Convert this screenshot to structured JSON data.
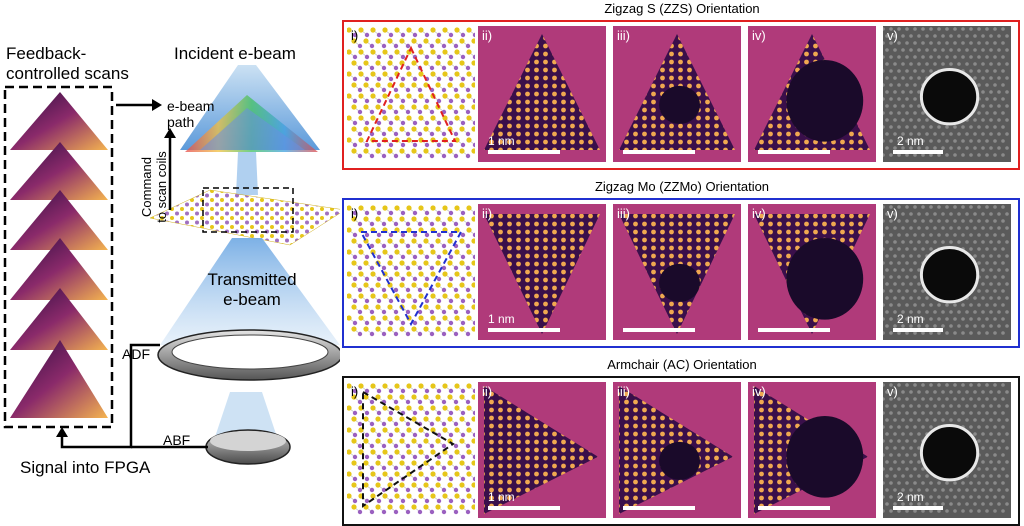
{
  "left": {
    "feedback_title_line1": "Feedback-",
    "feedback_title_line2": "controlled scans",
    "ebeam_path_line1": "e-beam",
    "ebeam_path_line2": "path",
    "command_line1": "Command",
    "command_line2": "to scan coils",
    "incident": "Incident e-beam",
    "transmitted_line1": "Transmitted",
    "transmitted_line2": "e-beam",
    "adf": "ADF",
    "abf": "ABF",
    "signal": "Signal into FPGA"
  },
  "rows": [
    {
      "title": "Zigzag S (ZZS) Orientation",
      "color": "#e02020",
      "tags": [
        "i)",
        "ii)",
        "iii)",
        "iv)",
        "v)"
      ],
      "scale_ii": "1 nm",
      "scale_v": "2 nm"
    },
    {
      "title": "Zigzag Mo (ZZMo) Orientation",
      "color": "#2030d0",
      "tags": [
        "i)",
        "ii)",
        "iii)",
        "iv)",
        "v)"
      ],
      "scale_ii": "1 nm",
      "scale_v": "2 nm"
    },
    {
      "title": "Armchair (AC) Orientation",
      "color": "#111111",
      "tags": [
        "i)",
        "ii)",
        "iii)",
        "iv)",
        "v)"
      ],
      "scale_ii": "1 nm",
      "scale_v": "2 nm"
    }
  ],
  "colors": {
    "stem_bg": "#b03a7a",
    "inferno_hot": "#f5b450",
    "inferno_dark": "#1a0a2a",
    "haadf_bg": "#5a5a5a"
  }
}
